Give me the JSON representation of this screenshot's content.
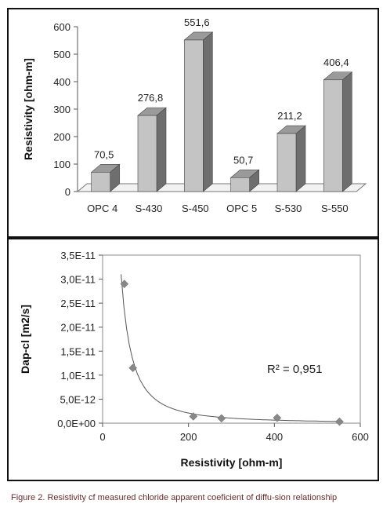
{
  "chart_data": [
    {
      "type": "bar",
      "categories": [
        "OPC 4",
        "S-430",
        "S-450",
        "OPC 5",
        "S-530",
        "S-550"
      ],
      "values": [
        70.5,
        276.8,
        551.6,
        50.7,
        211.2,
        406.4
      ],
      "data_labels": [
        "70,5",
        "276,8",
        "551,6",
        "50,7",
        "211,2",
        "406,4"
      ],
      "ylabel": "Resistivity [ohm-m]",
      "ylim": [
        0,
        600
      ],
      "yticks": [
        "0",
        "100",
        "200",
        "300",
        "400",
        "500",
        "600"
      ],
      "grid": false,
      "bar_color": "#c4c4c4",
      "bar_side_color": "#6e6e6e"
    },
    {
      "type": "scatter",
      "x": [
        50.7,
        70.5,
        211.2,
        276.8,
        406.4,
        551.6
      ],
      "y": [
        2.9e-11,
        1.15e-11,
        1.4e-12,
        1e-12,
        1.1e-12,
        3e-13
      ],
      "trendline": {
        "type": "power",
        "r2_label": "R² = 0,951"
      },
      "xlabel": "Resistivity [ohm-m]",
      "ylabel": "Dap-cl [m2/s]",
      "xlim": [
        0,
        600
      ],
      "ylim": [
        0,
        3.5e-11
      ],
      "xticks": [
        "0",
        "200",
        "400",
        "600"
      ],
      "yticks": [
        "0,0E+00",
        "5,0E-12",
        "1,0E-11",
        "1,5E-11",
        "2,0E-11",
        "2,5E-11",
        "3,0E-11",
        "3,5E-11"
      ],
      "grid": false,
      "marker_color": "#888888"
    }
  ],
  "caption": "Figure  2. Resistivity cf measured chloride apparent coeficient of diffu-sion relationship"
}
